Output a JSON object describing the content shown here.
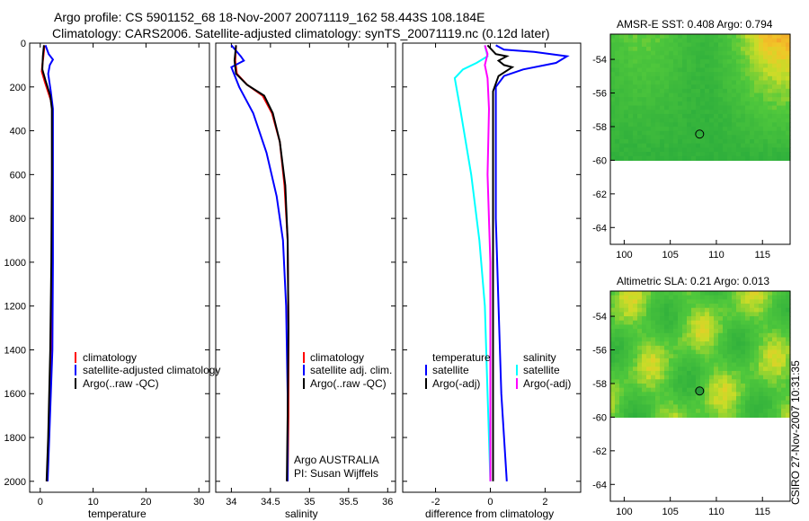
{
  "header": {
    "line1": "Argo profile: CS 5901152_68 18-Nov-2007 20071119_162 58.443S 108.184E",
    "line2": "Climatology: CARS2006. Satellite-adjusted climatology: synTS_20071119.nc (0.12d later)"
  },
  "credit": "CSIRO 27-Nov-2007 10:31:35",
  "colors": {
    "climatology": "#ff0000",
    "satellite": "#0000ff",
    "argo": "#000000",
    "salinity_satellite": "#00ffff",
    "salinity_argo": "#ff00ff"
  },
  "chart_data": [
    {
      "type": "line",
      "id": "temperature",
      "xlabel": "temperature",
      "ylabel": "",
      "xlim": [
        -2,
        32
      ],
      "ylim": [
        2050,
        0
      ],
      "xticks": [
        0,
        10,
        20,
        30
      ],
      "yticks": [
        0,
        200,
        400,
        600,
        800,
        1000,
        1200,
        1400,
        1600,
        1800,
        2000
      ],
      "legend": [
        "climatology",
        "satellite-adjusted climatology",
        "Argo(..raw -QC)"
      ],
      "series": [
        {
          "name": "climatology",
          "color": "#ff0000",
          "points": [
            [
              0.8,
              10
            ],
            [
              0.6,
              60
            ],
            [
              0.4,
              100
            ],
            [
              0.3,
              130
            ],
            [
              0.9,
              180
            ],
            [
              2.0,
              260
            ],
            [
              2.3,
              300
            ],
            [
              2.3,
              600
            ],
            [
              2.2,
              1000
            ],
            [
              2.0,
              1400
            ],
            [
              1.6,
              1800
            ],
            [
              1.3,
              2000
            ]
          ]
        },
        {
          "name": "satellite-adjusted climatology",
          "color": "#0000ff",
          "points": [
            [
              1.0,
              10
            ],
            [
              1.6,
              50
            ],
            [
              2.4,
              75
            ],
            [
              1.8,
              100
            ],
            [
              1.5,
              140
            ],
            [
              2.0,
              220
            ],
            [
              2.4,
              300
            ],
            [
              2.4,
              600
            ],
            [
              2.4,
              1000
            ],
            [
              2.3,
              1400
            ],
            [
              1.7,
              1800
            ],
            [
              1.4,
              2000
            ]
          ]
        },
        {
          "name": "Argo(..raw -QC)",
          "color": "#000000",
          "points": [
            [
              0.7,
              10
            ],
            [
              0.5,
              60
            ],
            [
              0.4,
              120
            ],
            [
              1.0,
              170
            ],
            [
              1.9,
              240
            ],
            [
              2.2,
              300
            ],
            [
              2.2,
              600
            ],
            [
              2.1,
              1000
            ],
            [
              1.9,
              1400
            ],
            [
              1.5,
              1800
            ],
            [
              1.2,
              2000
            ]
          ]
        }
      ]
    },
    {
      "type": "line",
      "id": "salinity",
      "xlabel": "salinity",
      "ylabel": "",
      "xlim": [
        33.8,
        36.1
      ],
      "ylim": [
        2050,
        0
      ],
      "xticks": [
        34,
        34.5,
        35,
        35.5,
        36
      ],
      "legend": [
        "climatology",
        "satellite adj. clim.",
        "Argo(..raw -QC)"
      ],
      "annotations": [
        "Argo AUSTRALIA",
        "PI: Susan Wijffels"
      ],
      "series": [
        {
          "name": "climatology",
          "color": "#ff0000",
          "points": [
            [
              34.06,
              10
            ],
            [
              34.05,
              80
            ],
            [
              34.07,
              140
            ],
            [
              34.2,
              190
            ],
            [
              34.4,
              240
            ],
            [
              34.52,
              320
            ],
            [
              34.62,
              450
            ],
            [
              34.68,
              650
            ],
            [
              34.72,
              900
            ],
            [
              34.73,
              1300
            ],
            [
              34.73,
              1700
            ],
            [
              34.72,
              2000
            ]
          ]
        },
        {
          "name": "satellite adj. clim.",
          "color": "#0000ff",
          "points": [
            [
              34.0,
              10
            ],
            [
              34.12,
              60
            ],
            [
              34.16,
              80
            ],
            [
              34.0,
              110
            ],
            [
              34.1,
              200
            ],
            [
              34.28,
              320
            ],
            [
              34.45,
              500
            ],
            [
              34.58,
              700
            ],
            [
              34.66,
              900
            ],
            [
              34.7,
              1200
            ],
            [
              34.72,
              1600
            ],
            [
              34.72,
              2000
            ]
          ]
        },
        {
          "name": "Argo(..raw -QC)",
          "color": "#000000",
          "points": [
            [
              34.06,
              10
            ],
            [
              34.04,
              80
            ],
            [
              34.06,
              140
            ],
            [
              34.2,
              190
            ],
            [
              34.42,
              240
            ],
            [
              34.53,
              320
            ],
            [
              34.62,
              450
            ],
            [
              34.69,
              650
            ],
            [
              34.72,
              900
            ],
            [
              34.73,
              1300
            ],
            [
              34.72,
              1700
            ],
            [
              34.71,
              2000
            ]
          ]
        }
      ]
    },
    {
      "type": "line",
      "id": "difference",
      "xlabel": "difference from climatology",
      "ylabel": "",
      "xlim": [
        -3.2,
        3.3
      ],
      "ylim": [
        2050,
        0
      ],
      "xticks": [
        -2,
        0,
        2
      ],
      "legend_titles": [
        "temperature",
        "salinity"
      ],
      "legend": [
        "satellite",
        "Argo(-adj)",
        "satellite",
        "Argo(-adj)"
      ],
      "series": [
        {
          "name": "temperature satellite",
          "color": "#0000ff",
          "points": [
            [
              0.2,
              10
            ],
            [
              0.5,
              30
            ],
            [
              1.6,
              40
            ],
            [
              2.8,
              60
            ],
            [
              2.4,
              90
            ],
            [
              1.2,
              120
            ],
            [
              0.5,
              150
            ],
            [
              0.2,
              200
            ],
            [
              0.2,
              400
            ],
            [
              0.2,
              800
            ],
            [
              0.3,
              1200
            ],
            [
              0.4,
              1600
            ],
            [
              0.6,
              2000
            ]
          ]
        },
        {
          "name": "temperature Argo(-adj)",
          "color": "#000000",
          "points": [
            [
              -0.1,
              10
            ],
            [
              0.2,
              50
            ],
            [
              0.6,
              60
            ],
            [
              0.3,
              80
            ],
            [
              0.5,
              100
            ],
            [
              0.8,
              110
            ],
            [
              0.3,
              150
            ],
            [
              0.1,
              220
            ],
            [
              0.1,
              600
            ],
            [
              0.1,
              1000
            ],
            [
              0.1,
              1500
            ],
            [
              0.1,
              2000
            ]
          ]
        },
        {
          "name": "salinity satellite",
          "color": "#00ffff",
          "points": [
            [
              -0.2,
              10
            ],
            [
              -0.1,
              60
            ],
            [
              -0.5,
              90
            ],
            [
              -1.0,
              120
            ],
            [
              -1.3,
              160
            ],
            [
              -1.1,
              300
            ],
            [
              -0.7,
              600
            ],
            [
              -0.4,
              900
            ],
            [
              -0.2,
              1200
            ],
            [
              -0.1,
              1600
            ],
            [
              0.0,
              2000
            ]
          ]
        },
        {
          "name": "salinity Argo(-adj)",
          "color": "#ff00ff",
          "points": [
            [
              -0.2,
              10
            ],
            [
              -0.1,
              50
            ],
            [
              -0.2,
              100
            ],
            [
              -0.1,
              160
            ],
            [
              -0.05,
              300
            ],
            [
              -0.1,
              600
            ],
            [
              0.0,
              1000
            ],
            [
              0.0,
              1500
            ],
            [
              0.0,
              2000
            ]
          ]
        }
      ]
    },
    {
      "type": "heatmap",
      "id": "sst-map",
      "title": "AMSR-E SST: 0.408 Argo: 0.794",
      "xlim": [
        98.5,
        118
      ],
      "ylim": [
        -65,
        -52.5
      ],
      "xticks": [
        100,
        105,
        110,
        115
      ],
      "yticks": [
        -54,
        -56,
        -58,
        -60,
        -62,
        -64
      ],
      "data_lat_range": [
        -60,
        -52.5
      ],
      "marker": {
        "lon": 108.184,
        "lat": -58.443
      }
    },
    {
      "type": "heatmap",
      "id": "sla-map",
      "title": "Altimetric SLA: 0.21 Argo: 0.013",
      "xlim": [
        98.5,
        118
      ],
      "ylim": [
        -65,
        -52.5
      ],
      "xticks": [
        100,
        105,
        110,
        115
      ],
      "yticks": [
        -54,
        -56,
        -58,
        -60,
        -62,
        -64
      ],
      "data_lat_range": [
        -60,
        -52.5
      ],
      "marker": {
        "lon": 108.184,
        "lat": -58.443
      }
    }
  ]
}
